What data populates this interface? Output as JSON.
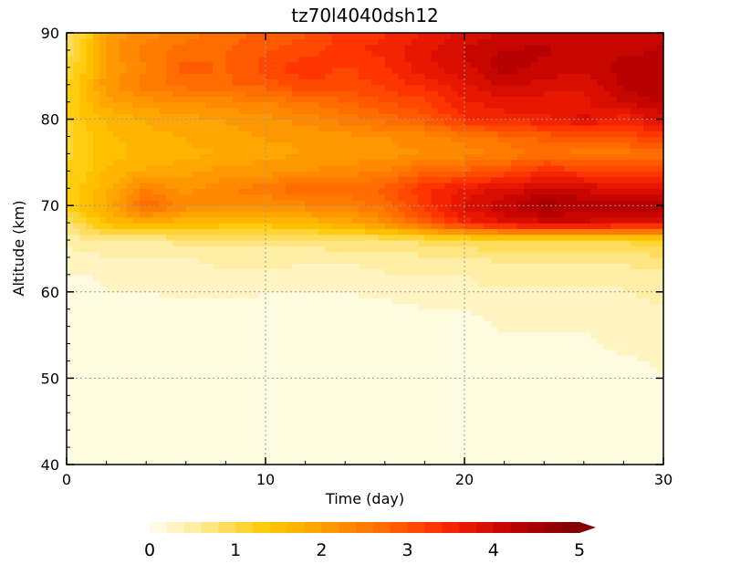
{
  "chart_data": {
    "type": "heatmap",
    "title": "tz70l4040dsh12",
    "xlabel": "Time (day)",
    "ylabel": "Altitude (km)",
    "xlim": [
      0,
      30
    ],
    "ylim": [
      40,
      90
    ],
    "x_ticks": [
      "0",
      "10",
      "20",
      "30"
    ],
    "y_ticks": [
      "40",
      "50",
      "60",
      "70",
      "80",
      "90"
    ],
    "grid": true,
    "colorbar": {
      "ticks": [
        "0",
        "1",
        "2",
        "3",
        "4",
        "5"
      ],
      "range": [
        0,
        5
      ],
      "levels": 25,
      "extend": "max",
      "colors": [
        "#fffbe0",
        "#fff4c2",
        "#ffeea6",
        "#ffe683",
        "#ffdd5c",
        "#ffd535",
        "#ffcc10",
        "#ffc000",
        "#ffb400",
        "#ffa600",
        "#ff9800",
        "#ff8a00",
        "#ff7b00",
        "#ff6c00",
        "#ff5a00",
        "#ff4800",
        "#ff3500",
        "#f52400",
        "#e81800",
        "#d80e00",
        "#c80600",
        "#b70000",
        "#a50000",
        "#940000",
        "#820000"
      ]
    },
    "x": [
      0,
      1,
      2,
      4,
      6,
      8,
      10,
      12,
      14,
      16,
      18,
      20,
      22,
      24,
      26,
      28,
      30
    ],
    "y": [
      40,
      45,
      50,
      55,
      58,
      60,
      62,
      64,
      66,
      68,
      70,
      72,
      74,
      76,
      78,
      80,
      82,
      84,
      86,
      88,
      90
    ],
    "values": [
      [
        0.1,
        0.1,
        0.1,
        0.1,
        0.1,
        0.1,
        0.1,
        0.1,
        0.1,
        0.1,
        0.1,
        0.1,
        0.1,
        0.1,
        0.1,
        0.1,
        0.1
      ],
      [
        0.1,
        0.1,
        0.1,
        0.1,
        0.1,
        0.1,
        0.1,
        0.1,
        0.1,
        0.1,
        0.1,
        0.1,
        0.1,
        0.1,
        0.1,
        0.1,
        0.1
      ],
      [
        0.1,
        0.1,
        0.1,
        0.1,
        0.1,
        0.1,
        0.1,
        0.1,
        0.1,
        0.1,
        0.1,
        0.1,
        0.1,
        0.1,
        0.1,
        0.1,
        0.2
      ],
      [
        0.1,
        0.1,
        0.1,
        0.1,
        0.1,
        0.1,
        0.1,
        0.1,
        0.1,
        0.1,
        0.1,
        0.1,
        0.2,
        0.2,
        0.2,
        0.3,
        0.3
      ],
      [
        0.1,
        0.1,
        0.1,
        0.1,
        0.1,
        0.1,
        0.2,
        0.1,
        0.1,
        0.1,
        0.2,
        0.2,
        0.3,
        0.3,
        0.3,
        0.3,
        0.4
      ],
      [
        0.1,
        0.1,
        0.2,
        0.2,
        0.3,
        0.3,
        0.2,
        0.2,
        0.2,
        0.3,
        0.3,
        0.4,
        0.4,
        0.4,
        0.4,
        0.4,
        0.5
      ],
      [
        0.2,
        0.2,
        0.3,
        0.3,
        0.3,
        0.4,
        0.4,
        0.3,
        0.3,
        0.4,
        0.4,
        0.4,
        0.5,
        0.5,
        0.5,
        0.5,
        0.6
      ],
      [
        0.3,
        0.3,
        0.4,
        0.4,
        0.4,
        0.5,
        0.5,
        0.5,
        0.5,
        0.5,
        0.6,
        0.6,
        0.7,
        0.7,
        0.7,
        0.7,
        0.8
      ],
      [
        0.5,
        0.6,
        0.6,
        0.6,
        0.7,
        0.7,
        0.7,
        0.7,
        0.8,
        0.8,
        0.9,
        1.0,
        1.1,
        1.1,
        1.1,
        1.1,
        1.2
      ],
      [
        0.8,
        1.2,
        1.6,
        1.8,
        1.7,
        1.6,
        1.6,
        1.7,
        1.9,
        2.3,
        3.0,
        3.6,
        4.0,
        4.1,
        4.1,
        4.0,
        3.9
      ],
      [
        1.3,
        1.6,
        1.9,
        2.9,
        2.4,
        2.3,
        2.3,
        2.4,
        2.5,
        2.8,
        3.4,
        4.0,
        4.3,
        4.7,
        4.6,
        4.5,
        4.6
      ],
      [
        1.4,
        1.5,
        1.8,
        2.5,
        2.2,
        2.5,
        2.6,
        3.0,
        2.8,
        3.0,
        3.5,
        3.8,
        4.0,
        4.2,
        4.1,
        4.0,
        4.0
      ],
      [
        1.3,
        1.4,
        1.7,
        1.9,
        2.0,
        2.2,
        2.2,
        2.3,
        2.4,
        2.5,
        2.9,
        3.0,
        3.2,
        3.5,
        3.4,
        3.3,
        3.4
      ],
      [
        1.2,
        1.4,
        1.6,
        1.7,
        1.8,
        1.9,
        2.0,
        2.1,
        2.1,
        2.2,
        2.3,
        2.4,
        2.5,
        2.8,
        2.6,
        2.6,
        2.7
      ],
      [
        1.2,
        1.4,
        1.6,
        1.8,
        1.9,
        2.0,
        2.1,
        2.1,
        2.2,
        2.3,
        2.4,
        2.6,
        2.8,
        3.0,
        3.0,
        3.2,
        3.3
      ],
      [
        1.2,
        1.5,
        1.7,
        1.9,
        2.0,
        2.1,
        2.2,
        2.4,
        2.6,
        2.8,
        3.0,
        3.5,
        3.6,
        3.7,
        4.0,
        3.6,
        4.1
      ],
      [
        1.2,
        1.6,
        2.0,
        2.2,
        2.3,
        2.4,
        2.5,
        2.7,
        2.9,
        3.1,
        3.3,
        3.7,
        3.9,
        3.8,
        3.9,
        4.2,
        4.4
      ],
      [
        1.2,
        1.6,
        2.2,
        2.6,
        2.8,
        2.9,
        3.0,
        3.3,
        3.2,
        3.4,
        3.6,
        3.9,
        4.2,
        4.1,
        4.0,
        4.4,
        4.6
      ],
      [
        1.1,
        1.5,
        2.1,
        2.5,
        3.0,
        2.9,
        3.2,
        3.5,
        3.3,
        3.5,
        3.9,
        4.1,
        4.5,
        4.3,
        4.2,
        4.5,
        4.5
      ],
      [
        0.9,
        1.4,
        2.2,
        2.6,
        2.8,
        2.9,
        3.1,
        3.2,
        3.5,
        3.6,
        3.9,
        4.2,
        4.4,
        4.4,
        4.3,
        4.3,
        4.4
      ],
      [
        0.8,
        1.3,
        2.1,
        2.4,
        2.6,
        2.8,
        3.0,
        3.1,
        3.4,
        3.5,
        3.8,
        4.0,
        4.2,
        4.3,
        4.2,
        4.2,
        4.3
      ]
    ]
  }
}
